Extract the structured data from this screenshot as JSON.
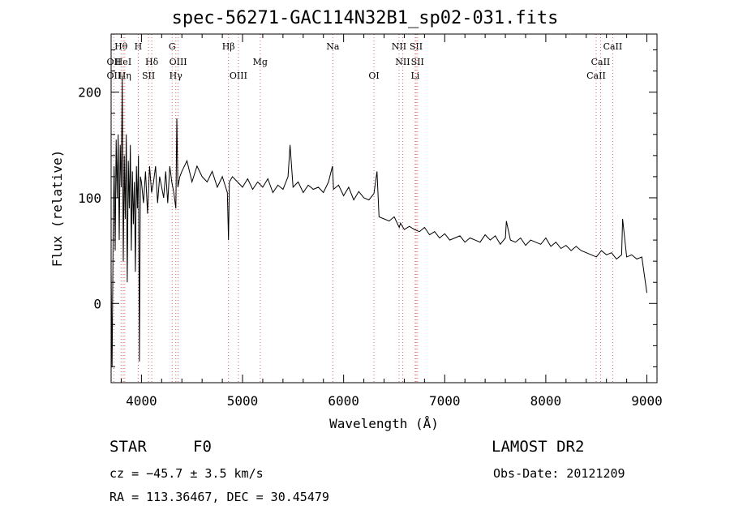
{
  "chart_data": {
    "type": "line",
    "title": "spec-56271-GAC114N32B1_sp02-031.fits",
    "xlabel": "Wavelength (Å)",
    "ylabel": "Flux (relative)",
    "xlim": [
      3700,
      9100
    ],
    "ylim": [
      -75,
      255
    ],
    "xticks": [
      "4000",
      "5000",
      "6000",
      "7000",
      "8000",
      "9000"
    ],
    "yticks": [
      "0",
      "100",
      "200"
    ],
    "grid": false,
    "series": [
      {
        "x": [
          3700,
          3710,
          3720,
          3730,
          3740,
          3750,
          3760,
          3770,
          3780,
          3790,
          3800,
          3810,
          3820,
          3830,
          3840,
          3850,
          3860,
          3870,
          3880,
          3890,
          3900,
          3910,
          3920,
          3930,
          3940,
          3950,
          3960,
          3970,
          3980,
          3990,
          4000,
          4020,
          4040,
          4060,
          4080,
          4100,
          4120,
          4140,
          4160,
          4180,
          4200,
          4220,
          4240,
          4260,
          4280,
          4300,
          4320,
          4340,
          4350,
          4360,
          4380,
          4400,
          4450,
          4500,
          4550,
          4600,
          4650,
          4700,
          4750,
          4800,
          4850,
          4861,
          4870,
          4900,
          4950,
          5000,
          5050,
          5100,
          5150,
          5200,
          5250,
          5300,
          5350,
          5400,
          5450,
          5470,
          5500,
          5550,
          5600,
          5650,
          5700,
          5750,
          5800,
          5850,
          5890,
          5900,
          5950,
          6000,
          6050,
          6100,
          6150,
          6200,
          6250,
          6300,
          6330,
          6350,
          6400,
          6450,
          6500,
          6550,
          6563,
          6600,
          6650,
          6700,
          6750,
          6800,
          6850,
          6900,
          6950,
          7000,
          7050,
          7100,
          7150,
          7200,
          7250,
          7300,
          7350,
          7400,
          7450,
          7500,
          7550,
          7600,
          7610,
          7650,
          7700,
          7750,
          7800,
          7850,
          7900,
          7950,
          8000,
          8050,
          8100,
          8150,
          8200,
          8250,
          8300,
          8350,
          8400,
          8450,
          8500,
          8550,
          8600,
          8650,
          8700,
          8750,
          8760,
          8800,
          8850,
          8900,
          8950,
          9000
        ],
        "y": [
          30,
          -60,
          70,
          130,
          50,
          155,
          100,
          160,
          60,
          150,
          110,
          215,
          40,
          140,
          80,
          160,
          20,
          135,
          90,
          150,
          50,
          125,
          75,
          115,
          30,
          130,
          90,
          140,
          -55,
          120,
          115,
          95,
          125,
          85,
          130,
          105,
          115,
          130,
          95,
          120,
          110,
          100,
          125,
          95,
          130,
          115,
          105,
          90,
          175,
          110,
          120,
          125,
          135,
          115,
          130,
          120,
          115,
          125,
          110,
          120,
          105,
          60,
          115,
          120,
          115,
          110,
          118,
          108,
          115,
          110,
          118,
          105,
          112,
          108,
          120,
          150,
          110,
          115,
          105,
          112,
          108,
          110,
          105,
          115,
          130,
          108,
          112,
          102,
          110,
          98,
          106,
          100,
          98,
          104,
          125,
          82,
          80,
          78,
          82,
          72,
          76,
          70,
          73,
          70,
          68,
          72,
          65,
          68,
          62,
          66,
          60,
          62,
          64,
          58,
          62,
          60,
          58,
          65,
          60,
          64,
          56,
          62,
          78,
          60,
          58,
          62,
          55,
          60,
          58,
          56,
          62,
          54,
          58,
          52,
          55,
          50,
          54,
          50,
          48,
          46,
          44,
          50,
          46,
          48,
          42,
          46,
          80,
          44,
          46,
          42,
          44,
          10
        ]
      }
    ],
    "line_markers": [
      {
        "label": "Hθ",
        "x": 3798,
        "row": 0
      },
      {
        "label": "OII",
        "x": 3727,
        "row": 1
      },
      {
        "label": "HeI",
        "x": 3820,
        "row": 1
      },
      {
        "label": "OII",
        "x": 3727,
        "row": 2
      },
      {
        "label": "Hη",
        "x": 3835,
        "row": 2
      },
      {
        "label": "H",
        "x": 3968,
        "row": 0
      },
      {
        "label": "Hδ",
        "x": 4102,
        "row": 1
      },
      {
        "label": "SII",
        "x": 4070,
        "row": 2
      },
      {
        "label": "G",
        "x": 4304,
        "row": 0
      },
      {
        "label": "OIII",
        "x": 4363,
        "row": 1
      },
      {
        "label": "Hγ",
        "x": 4340,
        "row": 2
      },
      {
        "label": "Hβ",
        "x": 4861,
        "row": 0
      },
      {
        "label": "Mg",
        "x": 5175,
        "row": 1
      },
      {
        "label": "OIII",
        "x": 4959,
        "row": 2
      },
      {
        "label": "Na",
        "x": 5893,
        "row": 0
      },
      {
        "label": "OI",
        "x": 6300,
        "row": 2
      },
      {
        "label": "NII",
        "x": 6548,
        "row": 0
      },
      {
        "label": "SII",
        "x": 6717,
        "row": 0
      },
      {
        "label": "NII",
        "x": 6584,
        "row": 1
      },
      {
        "label": "SII",
        "x": 6731,
        "row": 1
      },
      {
        "label": "Li",
        "x": 6708,
        "row": 2
      },
      {
        "label": "CaII",
        "x": 8662,
        "row": 0
      },
      {
        "label": "CaII",
        "x": 8542,
        "row": 1
      },
      {
        "label": "CaII",
        "x": 8498,
        "row": 2
      }
    ]
  },
  "info": {
    "object_type": "STAR",
    "subclass": "F0",
    "survey": "LAMOST DR2",
    "cz": "cz = −45.7 ± 3.5 km/s",
    "obs_date": "Obs-Date: 20121209",
    "coords": "RA = 113.36467, DEC =  30.45479"
  },
  "colors": {
    "line": "#000000",
    "marker": "#e06060"
  }
}
